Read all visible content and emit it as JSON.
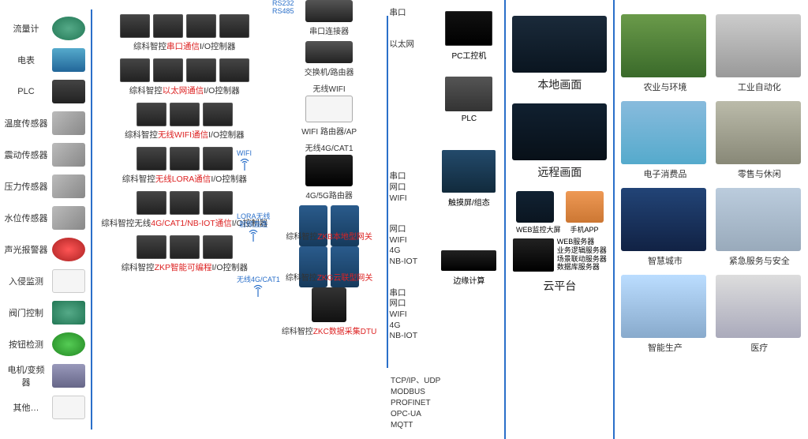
{
  "sensors": [
    {
      "label": "流量计",
      "cls": "green round"
    },
    {
      "label": "电表",
      "cls": "blue"
    },
    {
      "label": "PLC",
      "cls": "dark"
    },
    {
      "label": "温度传感器",
      "cls": ""
    },
    {
      "label": "震动传感器",
      "cls": ""
    },
    {
      "label": "压力传感器",
      "cls": ""
    },
    {
      "label": "水位传感器",
      "cls": ""
    },
    {
      "label": "声光报警器",
      "cls": "red round"
    },
    {
      "label": "入侵监测",
      "cls": "white"
    },
    {
      "label": "阀门控制",
      "cls": "green"
    },
    {
      "label": "按钮检测",
      "cls": "grn2 round"
    },
    {
      "label": "电机/变频器",
      "cls": "motor"
    },
    {
      "label": "其他…",
      "cls": "white"
    }
  ],
  "controllers": [
    {
      "pre": "综科智控",
      "hl": "串口通信",
      "post": "I/O控制器",
      "imgs": 4
    },
    {
      "pre": "综科智控",
      "hl": "以太网通信",
      "post": "I/O控制器",
      "imgs": 4,
      "side": "WIFI"
    },
    {
      "pre": "综科智控",
      "hl": "无线WIFI通信",
      "post": "I/O控制器",
      "imgs": 3,
      "side": "LORA无线",
      "side2": "射频直连"
    },
    {
      "pre": "综科智控",
      "hl": "无线LORA通信",
      "post": "I/O控制器",
      "imgs": 3,
      "side": "无线4G/CAT1"
    },
    {
      "pre": "综科智控无线",
      "hl": "4G/CAT1/NB-IOT通信",
      "post": "I/O控制器",
      "imgs": 3
    },
    {
      "pre": "综科智控",
      "hl": "ZKP智能可编程",
      "post": "I/O控制器",
      "imgs": 3
    }
  ],
  "rs": {
    "a": "RS232",
    "b": "RS485"
  },
  "net": [
    {
      "label": "串口连接器",
      "cls": ""
    },
    {
      "label": "交换机/路由器",
      "cls": ""
    },
    {
      "label": "WIFI 路由器/AP",
      "cls": "router",
      "top": "无线WIFI"
    },
    {
      "label": "4G/5G路由器",
      "cls": "black",
      "top": "无线4G/CAT1"
    },
    {
      "label_pre": "综科智控",
      "label_hl": "ZKB本地型网关",
      "cls": "dual"
    },
    {
      "label_pre": "综科智控",
      "label_hl": "ZKG云联型网关",
      "cls": "dual"
    },
    {
      "label_pre": "综科智控",
      "label_hl": "ZKC数据采集DTU",
      "cls": "dtu"
    }
  ],
  "bus": [
    [
      "串口"
    ],
    [
      "以太网"
    ],
    [],
    [],
    [
      "串口",
      "网口",
      "WIFI"
    ],
    [
      "网口",
      "WIFI",
      "4G",
      "NB-IOT"
    ],
    [
      "串口",
      "网口",
      "WIFI",
      "4G",
      "NB-IOT"
    ]
  ],
  "protocols": [
    "TCP/IP、UDP",
    "MODBUS",
    "PROFINET",
    "OPC-UA",
    "MQTT"
  ],
  "devices": [
    {
      "label": "PC工控机",
      "cls": "pc"
    },
    {
      "label": "PLC",
      "cls": "plc"
    },
    {
      "label": "触摸屏/组态",
      "cls": "screens"
    },
    {
      "label": "边缘计算",
      "cls": "edge"
    }
  ],
  "panes": [
    {
      "title": "本地画面",
      "cls": ""
    },
    {
      "title": "远程画面",
      "cls": "dash"
    }
  ],
  "cloud": {
    "web": "WEB监控大屏",
    "app": "手机APP",
    "srv": [
      "WEB服务器",
      "业务逻辑服务器",
      "场景联动服务器",
      "数据库服务器"
    ],
    "title": "云平台"
  },
  "apps": [
    {
      "label": "农业与环境",
      "cls": "agri"
    },
    {
      "label": "工业自动化",
      "cls": "auto"
    },
    {
      "label": "电子消费品",
      "cls": "fiveg"
    },
    {
      "label": "零售与休闲",
      "cls": "retail"
    },
    {
      "label": "智慧城市",
      "cls": "city"
    },
    {
      "label": "紧急服务与安全",
      "cls": "emerg"
    },
    {
      "label": "智能生产",
      "cls": "ai"
    },
    {
      "label": "医疗",
      "cls": "med"
    }
  ],
  "colors": {
    "accent": "#2a6fc9",
    "highlight": "#d22"
  }
}
